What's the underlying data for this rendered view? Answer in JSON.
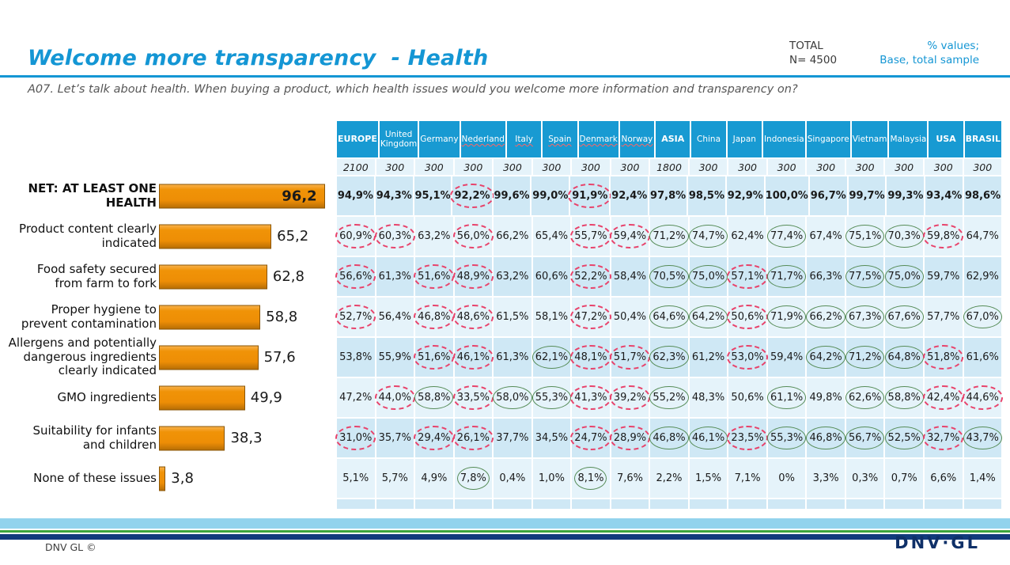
{
  "header": {
    "title": "Welcome more transparency  - Health",
    "total_label": "TOTAL",
    "total_n": "N= 4500",
    "note_line1": "% values;",
    "note_line2": "Base, total sample",
    "question": "A07. Let’s talk about health. When buying a product, which health issues would you welcome more information and transparency on?"
  },
  "footer": {
    "copyright": "DNV GL ©",
    "logo": "DNV·GL"
  },
  "colors": {
    "accent_blue": "#1496d4",
    "header_bg": "#189ad2",
    "bar_orange": "#ee8e06",
    "row_dark": "#cfe8f5",
    "row_light": "#e5f3fa",
    "ellipse_red": "#e8436b",
    "ellipse_green": "#568c57",
    "stripe_sky": "#92d3ed",
    "stripe_green": "#3ca53c",
    "stripe_navy": "#113a7c",
    "logo_navy": "#0f3068"
  },
  "chart_data": {
    "type": "bar",
    "orientation": "horizontal",
    "title": "Welcome more transparency - Health",
    "categories": [
      "NET: AT LEAST ONE HEALTH",
      "Product content clearly indicated",
      "Food safety secured from farm to fork",
      "Proper hygiene to prevent contamination",
      "Allergens and potentially dangerous ingredients clearly indicated",
      "GMO ingredients",
      "Suitability for infants and children",
      "None of these issues"
    ],
    "values": [
      96.2,
      65.2,
      62.8,
      58.8,
      57.6,
      49.9,
      38.3,
      3.8
    ],
    "value_labels": [
      "96,2",
      "65,2",
      "62,8",
      "58,8",
      "57,6",
      "49,9",
      "38,3",
      "3,8"
    ],
    "xlim": [
      0,
      100
    ],
    "bar_color": "#ee8e06"
  },
  "table": {
    "columns": [
      {
        "label": "EUROPE",
        "n": "2100",
        "bold": true,
        "squiggle": false
      },
      {
        "label": "United Kingdom",
        "n": "300",
        "bold": false,
        "squiggle": false
      },
      {
        "label": "Germany",
        "n": "300",
        "bold": false,
        "squiggle": false
      },
      {
        "label": "Nederland",
        "n": "300",
        "bold": false,
        "squiggle": true
      },
      {
        "label": "Italy",
        "n": "300",
        "bold": false,
        "squiggle": true
      },
      {
        "label": "Spain",
        "n": "300",
        "bold": false,
        "squiggle": true
      },
      {
        "label": "Denmark",
        "n": "300",
        "bold": false,
        "squiggle": true
      },
      {
        "label": "Norway",
        "n": "300",
        "bold": false,
        "squiggle": true
      },
      {
        "label": "ASIA",
        "n": "1800",
        "bold": true,
        "squiggle": false
      },
      {
        "label": "China",
        "n": "300",
        "bold": false,
        "squiggle": false
      },
      {
        "label": "Japan",
        "n": "300",
        "bold": false,
        "squiggle": false
      },
      {
        "label": "Indonesia",
        "n": "300",
        "bold": false,
        "squiggle": false
      },
      {
        "label": "Singapore",
        "n": "300",
        "bold": false,
        "squiggle": false
      },
      {
        "label": "Vietnam",
        "n": "300",
        "bold": false,
        "squiggle": false
      },
      {
        "label": "Malaysia",
        "n": "300",
        "bold": false,
        "squiggle": false
      },
      {
        "label": "USA",
        "n": "300",
        "bold": true,
        "squiggle": false
      },
      {
        "label": "BRASIL",
        "n": "300",
        "bold": true,
        "squiggle": false
      }
    ],
    "rows": [
      {
        "label": "NET: AT LEAST ONE HEALTH",
        "bold": true,
        "bar_value": 96.2,
        "bar_label": "96,2",
        "cells": [
          "94,9%",
          "94,3%",
          "95,1%",
          "92,2%",
          "99,6%",
          "99,0%",
          "91,9%",
          "92,4%",
          "97,8%",
          "98,5%",
          "92,9%",
          "100,0%",
          "96,7%",
          "99,7%",
          "99,3%",
          "93,4%",
          "98,6%"
        ],
        "marks": [
          "",
          "",
          "",
          "r",
          "",
          "",
          "r",
          "",
          "",
          "",
          "",
          "",
          "",
          "",
          "",
          "",
          ""
        ]
      },
      {
        "label": "Product content clearly indicated",
        "bold": false,
        "bar_value": 65.2,
        "bar_label": "65,2",
        "cells": [
          "60,9%",
          "60,3%",
          "63,2%",
          "56,0%",
          "66,2%",
          "65,4%",
          "55,7%",
          "59,4%",
          "71,2%",
          "74,7%",
          "62,4%",
          "77,4%",
          "67,4%",
          "75,1%",
          "70,3%",
          "59,8%",
          "64,7%"
        ],
        "marks": [
          "r",
          "r",
          "",
          "r",
          "",
          "",
          "r",
          "r",
          "g",
          "g",
          "",
          "g",
          "",
          "g",
          "g",
          "r",
          ""
        ]
      },
      {
        "label": "Food safety secured from farm to fork",
        "bold": false,
        "bar_value": 62.8,
        "bar_label": "62,8",
        "cells": [
          "56,6%",
          "61,3%",
          "51,6%",
          "48,9%",
          "63,2%",
          "60,6%",
          "52,2%",
          "58,4%",
          "70,5%",
          "75,0%",
          "57,1%",
          "71,7%",
          "66,3%",
          "77,5%",
          "75,0%",
          "59,7%",
          "62,9%"
        ],
        "marks": [
          "r",
          "",
          "r",
          "r",
          "",
          "",
          "r",
          "",
          "g",
          "g",
          "r",
          "g",
          "",
          "g",
          "g",
          "",
          ""
        ]
      },
      {
        "label": "Proper hygiene to prevent contamination",
        "bold": false,
        "bar_value": 58.8,
        "bar_label": "58,8",
        "cells": [
          "52,7%",
          "56,4%",
          "46,8%",
          "48,6%",
          "61,5%",
          "58,1%",
          "47,2%",
          "50,4%",
          "64,6%",
          "64,2%",
          "50,6%",
          "71,9%",
          "66,2%",
          "67,3%",
          "67,6%",
          "57,7%",
          "67,0%"
        ],
        "marks": [
          "r",
          "",
          "r",
          "r",
          "",
          "",
          "r",
          "",
          "g",
          "g",
          "r",
          "g",
          "g",
          "g",
          "g",
          "",
          "g"
        ]
      },
      {
        "label": "Allergens and potentially dangerous ingredients clearly indicated",
        "bold": false,
        "bar_value": 57.6,
        "bar_label": "57,6",
        "cells": [
          "53,8%",
          "55,9%",
          "51,6%",
          "46,1%",
          "61,3%",
          "62,1%",
          "48,1%",
          "51,7%",
          "62,3%",
          "61,2%",
          "53,0%",
          "59,4%",
          "64,2%",
          "71,2%",
          "64,8%",
          "51,8%",
          "61,6%"
        ],
        "marks": [
          "",
          "",
          "r",
          "r",
          "",
          "g",
          "r",
          "r",
          "g",
          "",
          "r",
          "",
          "g",
          "g",
          "g",
          "r",
          ""
        ]
      },
      {
        "label": "GMO ingredients",
        "bold": false,
        "bar_value": 49.9,
        "bar_label": "49,9",
        "cells": [
          "47,2%",
          "44,0%",
          "58,8%",
          "33,5%",
          "58,0%",
          "55,3%",
          "41,3%",
          "39,2%",
          "55,2%",
          "48,3%",
          "50,6%",
          "61,1%",
          "49,8%",
          "62,6%",
          "58,8%",
          "42,4%",
          "44,6%"
        ],
        "marks": [
          "",
          "r",
          "g",
          "r",
          "g",
          "g",
          "r",
          "r",
          "g",
          "",
          "",
          "g",
          "",
          "g",
          "g",
          "r",
          "r"
        ]
      },
      {
        "label": "Suitability for infants and children",
        "bold": false,
        "bar_value": 38.3,
        "bar_label": "38,3",
        "cells": [
          "31,0%",
          "35,7%",
          "29,4%",
          "26,1%",
          "37,7%",
          "34,5%",
          "24,7%",
          "28,9%",
          "46,8%",
          "46,1%",
          "23,5%",
          "55,3%",
          "46,8%",
          "56,7%",
          "52,5%",
          "32,7%",
          "43,7%"
        ],
        "marks": [
          "r",
          "",
          "r",
          "r",
          "",
          "",
          "r",
          "r",
          "g",
          "g",
          "r",
          "g",
          "g",
          "g",
          "g",
          "r",
          "g"
        ]
      },
      {
        "label": "None of these issues",
        "bold": false,
        "bar_value": 3.8,
        "bar_label": "3,8",
        "cells": [
          "5,1%",
          "5,7%",
          "4,9%",
          "7,8%",
          "0,4%",
          "1,0%",
          "8,1%",
          "7,6%",
          "2,2%",
          "1,5%",
          "7,1%",
          "0%",
          "3,3%",
          "0,3%",
          "0,7%",
          "6,6%",
          "1,4%"
        ],
        "marks": [
          "",
          "",
          "",
          "g",
          "",
          "",
          "g",
          "",
          "",
          "",
          "",
          "",
          "",
          "",
          "",
          "",
          ""
        ]
      }
    ]
  }
}
